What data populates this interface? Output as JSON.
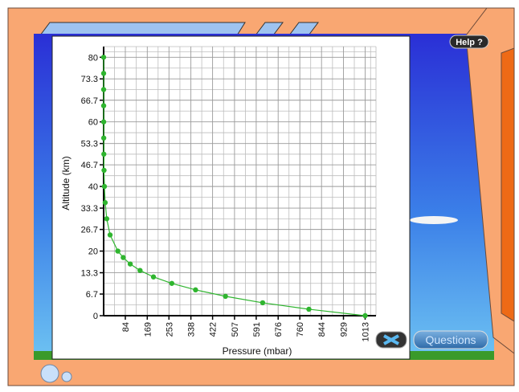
{
  "ui": {
    "help_button": "Help ?",
    "questions_button": "Questions"
  },
  "chart_data": {
    "type": "line",
    "x_label": "Pressure (mbar)",
    "y_label": "Altitude (km)",
    "xlim": [
      0,
      1055
    ],
    "ylim": [
      0,
      83.3
    ],
    "xticks": [
      84,
      169,
      253,
      338,
      422,
      507,
      591,
      676,
      760,
      844,
      929,
      1013
    ],
    "yticks": [
      0,
      6.7,
      13.3,
      20,
      26.7,
      33.3,
      40,
      46.7,
      53.3,
      60,
      66.7,
      73.3,
      80
    ],
    "grid": true,
    "series": [
      {
        "color": "#2fb52f",
        "x": [
          1013,
          795,
          616,
          472,
          356,
          264,
          193,
          141,
          103,
          76,
          55,
          25,
          12,
          6,
          3,
          1.5,
          0.8,
          0.4,
          0.2,
          0.1,
          0.05,
          0.025,
          0.01
        ],
        "values": [
          0,
          2,
          4,
          6,
          8,
          10,
          12,
          14,
          16,
          18,
          20,
          25,
          30,
          35,
          40,
          45,
          50,
          55,
          60,
          65,
          70,
          75,
          80
        ]
      }
    ]
  }
}
